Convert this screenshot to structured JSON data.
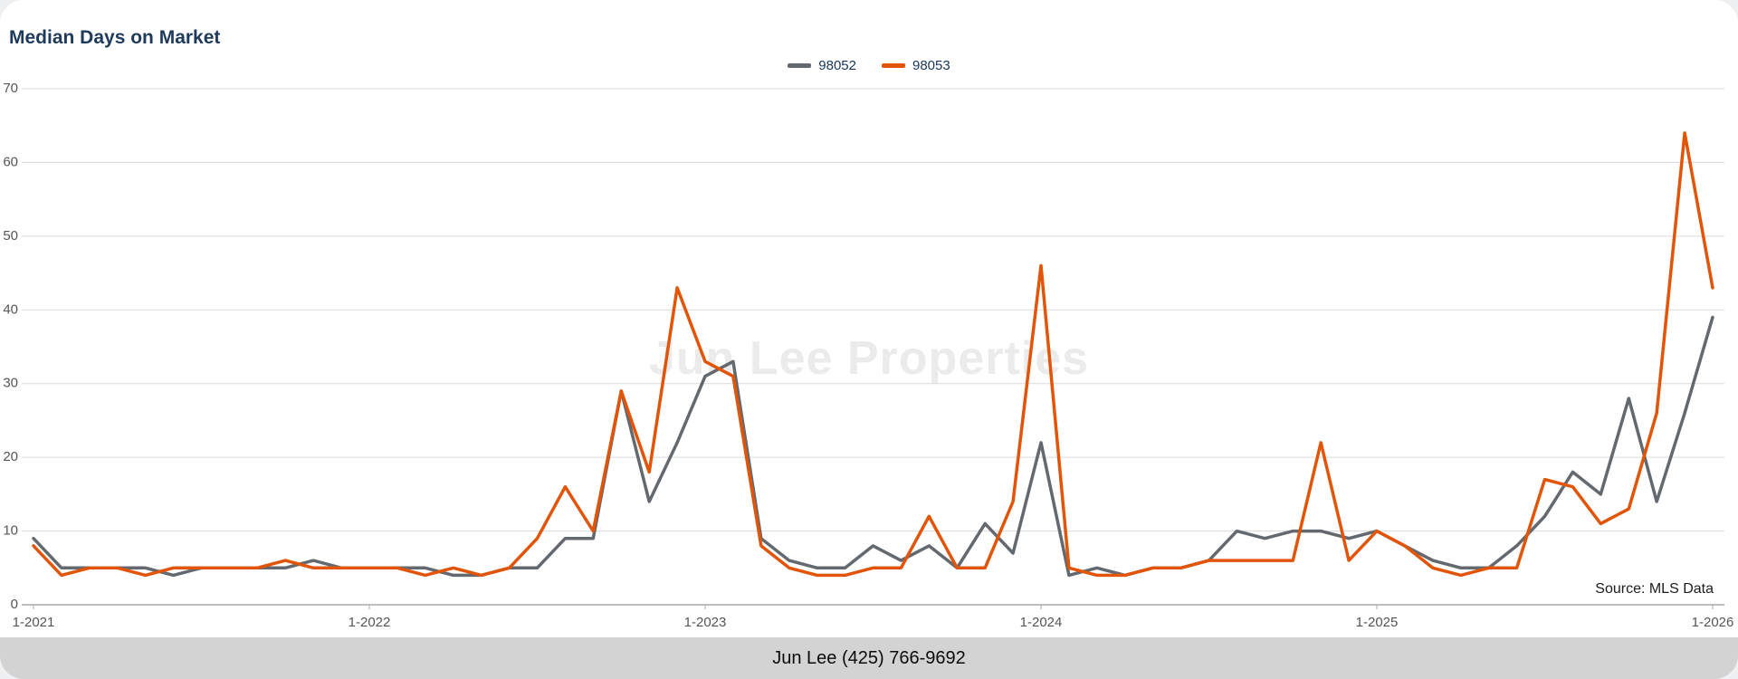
{
  "chart_data": {
    "type": "line",
    "title": "Median Days on Market",
    "title_color": "#1f3b5c",
    "watermark": "Jun Lee Properties",
    "source_note": "Source: MLS Data",
    "ylim": [
      0,
      70
    ],
    "y_ticks": [
      0,
      10,
      20,
      30,
      40,
      50,
      60,
      70
    ],
    "grid": "horizontal",
    "legend_position": "top-center",
    "n_points": 61,
    "x_ticks": [
      {
        "label": "1-2021",
        "month": 0
      },
      {
        "label": "1-2022",
        "month": 12
      },
      {
        "label": "1-2023",
        "month": 24
      },
      {
        "label": "1-2024",
        "month": 36
      },
      {
        "label": "1-2025",
        "month": 48
      },
      {
        "label": "1-2026",
        "month": 60
      }
    ],
    "series": [
      {
        "name": "98052",
        "color": "#63696e",
        "values": [
          9,
          5,
          5,
          5,
          5,
          4,
          5,
          5,
          5,
          5,
          6,
          5,
          5,
          5,
          5,
          4,
          4,
          5,
          5,
          9,
          9,
          29,
          14,
          22,
          31,
          33,
          9,
          6,
          5,
          5,
          8,
          6,
          8,
          5,
          11,
          7,
          22,
          4,
          5,
          4,
          5,
          5,
          6,
          10,
          9,
          10,
          10,
          9,
          10,
          8,
          6,
          5,
          5,
          8,
          12,
          18,
          15,
          28,
          14,
          26,
          39
        ]
      },
      {
        "name": "98053",
        "color": "#e25508",
        "values": [
          8,
          4,
          5,
          5,
          4,
          5,
          5,
          5,
          5,
          6,
          5,
          5,
          5,
          5,
          4,
          5,
          4,
          5,
          9,
          16,
          10,
          29,
          18,
          43,
          33,
          31,
          8,
          5,
          4,
          4,
          5,
          5,
          12,
          5,
          5,
          14,
          46,
          5,
          4,
          4,
          5,
          5,
          6,
          6,
          6,
          6,
          22,
          6,
          10,
          8,
          5,
          4,
          5,
          5,
          17,
          16,
          11,
          13,
          26,
          64,
          43
        ]
      }
    ]
  },
  "footer": {
    "contact": "Jun Lee (425) 766-9692"
  }
}
